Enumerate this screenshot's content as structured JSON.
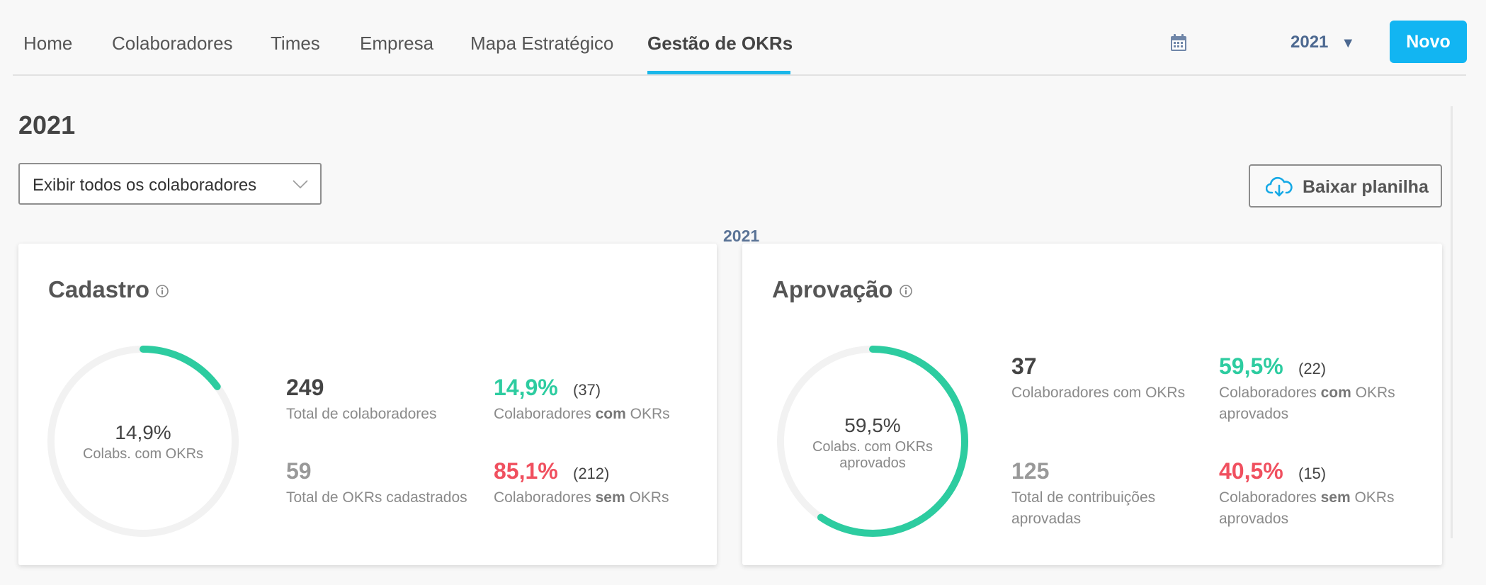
{
  "nav": {
    "tabs": [
      "Home",
      "Colaboradores",
      "Times",
      "Empresa",
      "Mapa Estratégico",
      "Gestão de OKRs"
    ],
    "active_tab": "Gestão de OKRs",
    "year": "2021",
    "novo_label": "Novo"
  },
  "page": {
    "title": "2021",
    "filter_value": "Exibir todos os colaboradores",
    "download_label": "Baixar planilha",
    "section_year": "2021"
  },
  "colors": {
    "accent": "#12b5f2",
    "green": "#2dcca0",
    "red": "#f0505f",
    "ring_track": "#f2f2f2"
  },
  "cadastro": {
    "title": "Cadastro",
    "gauge_value": "14,9%",
    "gauge_label": "Colabs. com OKRs",
    "gauge_fraction": 0.149,
    "total_colaboradores": "249",
    "total_colaboradores_label": "Total de colaboradores",
    "total_okrs": "59",
    "total_okrs_label": "Total de OKRs cadastrados",
    "com_pct": "14,9%",
    "com_count": "(37)",
    "com_label_a": "Colaboradores ",
    "com_label_b": "com",
    "com_label_c": " OKRs",
    "sem_pct": "85,1%",
    "sem_count": "(212)",
    "sem_label_a": "Colaboradores ",
    "sem_label_b": "sem",
    "sem_label_c": " OKRs"
  },
  "aprovacao": {
    "title": "Aprovação",
    "gauge_value": "59,5%",
    "gauge_label_1": "Colabs. com OKRs",
    "gauge_label_2": "aprovados",
    "gauge_fraction": 0.595,
    "colab_okrs": "37",
    "colab_okrs_label": "Colaboradores com OKRs",
    "contrib": "125",
    "contrib_label_1": "Total de contribuições",
    "contrib_label_2": "aprovadas",
    "com_pct": "59,5%",
    "com_count": "(22)",
    "com_label_a": "Colaboradores ",
    "com_label_b": "com",
    "com_label_c": " OKRs",
    "com_label_2": "aprovados",
    "sem_pct": "40,5%",
    "sem_count": "(15)",
    "sem_label_a": "Colaboradores ",
    "sem_label_b": "sem",
    "sem_label_c": " OKRs",
    "sem_label_2": "aprovados"
  }
}
